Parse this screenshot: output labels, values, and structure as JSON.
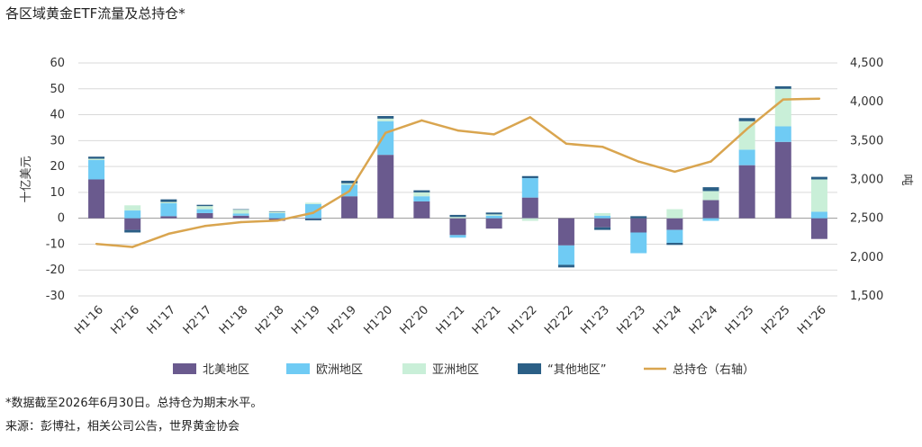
{
  "title": "各区域黄金ETF流量及总持仓*",
  "footnote": "*数据截至2026年6月30日。总持仓为期末水平。",
  "source": "来源：彭博社，相关公司公告，世界黄金协会",
  "chart_data": {
    "type": "bar",
    "stacked": true,
    "categories": [
      "H1'16",
      "H2'16",
      "H1'17",
      "H2'17",
      "H1'18",
      "H2'18",
      "H1'19",
      "H2'19",
      "H1'20",
      "H2'20",
      "H1'21",
      "H2'21",
      "H1'22",
      "H2'22",
      "H1'23",
      "H2'23",
      "H1'24",
      "H2'24",
      "H1'25",
      "H2'25",
      "H1'26"
    ],
    "ylabel": "十亿美元",
    "y2label": "吨",
    "ylim": [
      -30,
      60
    ],
    "yticks": [
      -30,
      -20,
      -10,
      0,
      10,
      20,
      30,
      40,
      50,
      60
    ],
    "y2lim": [
      1500,
      4500
    ],
    "y2ticks": [
      "1,500",
      "2,000",
      "2,500",
      "3,000",
      "3,500",
      "4,000",
      "4,500"
    ],
    "y2tick_values": [
      1500,
      2000,
      2500,
      3000,
      3500,
      4000,
      4500
    ],
    "grid": true,
    "legend_position": "bottom",
    "series": [
      {
        "name": "北美地区",
        "color": "#6a5a8e",
        "values": [
          15,
          -4.5,
          0.8,
          2,
          1,
          -1,
          -0.3,
          8.5,
          24.5,
          6.5,
          -6.5,
          -4,
          8,
          -10.5,
          -3.5,
          -5.5,
          -4.5,
          7,
          20.5,
          29.5,
          -8
        ]
      },
      {
        "name": "欧洲地区",
        "color": "#6fcbf4",
        "values": [
          7.5,
          3,
          5,
          1.5,
          0.8,
          2,
          5.5,
          4.5,
          13,
          2,
          -1,
          1,
          7.5,
          -7.5,
          1,
          -8,
          -5,
          -1,
          6,
          6,
          2.5
        ]
      },
      {
        "name": "亚洲地区",
        "color": "#c9efd8",
        "values": [
          0.5,
          2,
          0.5,
          1.2,
          1.5,
          0.5,
          0.5,
          0.5,
          1,
          1.5,
          0.5,
          0.5,
          -1,
          0,
          1,
          0,
          3.5,
          3.5,
          11,
          14.5,
          12.5
        ]
      },
      {
        "name": "“其他地区”",
        "color": "#2b5f86",
        "values": [
          0.8,
          -1,
          1,
          0.5,
          0.2,
          0.2,
          -0.5,
          1,
          1,
          0.8,
          0.8,
          0.7,
          0.8,
          -1,
          -1,
          0.8,
          -0.8,
          1.5,
          1.2,
          1,
          1
        ]
      }
    ],
    "line_series": {
      "name": "总持仓（右轴）",
      "color": "#d9a54f",
      "axis": "right",
      "values": [
        2170,
        2130,
        2300,
        2400,
        2450,
        2470,
        2570,
        2850,
        3600,
        3760,
        3630,
        3580,
        3800,
        3460,
        3420,
        3230,
        3100,
        3230,
        3650,
        4030,
        4040
      ]
    }
  }
}
